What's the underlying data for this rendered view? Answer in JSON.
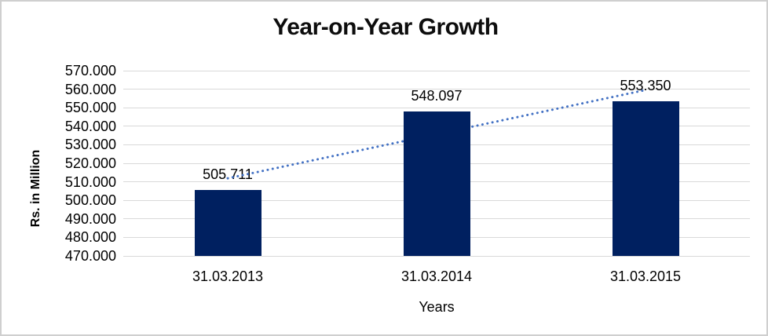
{
  "frame": {
    "border_color": "#cfcfcf",
    "background": "#ffffff"
  },
  "chart_data": {
    "type": "bar",
    "title": "Year-on-Year Growth",
    "categories": [
      "31.03.2013",
      "31.03.2014",
      "31.03.2015"
    ],
    "values": [
      505.711,
      548.097,
      553.35
    ],
    "data_labels": [
      "505.711",
      "548.097",
      "553.350"
    ],
    "xlabel": "Years",
    "ylabel": "Rs. in Million",
    "ylim": [
      470,
      570
    ],
    "ytick_step": 10,
    "ytick_labels": [
      "570.000",
      "560.000",
      "550.000",
      "540.000",
      "530.000",
      "520.000",
      "510.000",
      "500.000",
      "490.000",
      "480.000",
      "470.000"
    ],
    "grid": true,
    "legend": false,
    "bar_color": "#002060",
    "gridline_color": "#d9d9d9",
    "trendline": {
      "type": "linear",
      "style": "dotted",
      "color": "#4472c4"
    }
  }
}
